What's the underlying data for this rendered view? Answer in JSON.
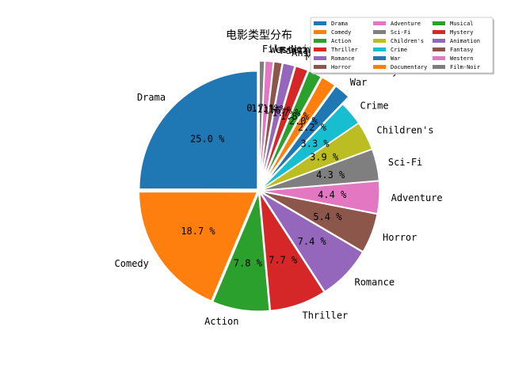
{
  "chart_data": {
    "type": "pie",
    "title": "电影类型分布",
    "legend_position": "top-right",
    "slices": [
      {
        "label": "Drama",
        "value": 25.0,
        "color": "#1f77b4"
      },
      {
        "label": "Comedy",
        "value": 18.7,
        "color": "#ff7f0e"
      },
      {
        "label": "Action",
        "value": 7.8,
        "color": "#2ca02c"
      },
      {
        "label": "Thriller",
        "value": 7.7,
        "color": "#d62728"
      },
      {
        "label": "Romance",
        "value": 7.4,
        "color": "#9467bd"
      },
      {
        "label": "Horror",
        "value": 5.4,
        "color": "#8c564b"
      },
      {
        "label": "Adventure",
        "value": 4.4,
        "color": "#e377c2"
      },
      {
        "label": "Sci-Fi",
        "value": 4.3,
        "color": "#7f7f7f"
      },
      {
        "label": "Children's",
        "value": 3.9,
        "color": "#bcbd22"
      },
      {
        "label": "Crime",
        "value": 3.3,
        "color": "#17becf"
      },
      {
        "label": "War",
        "value": 2.2,
        "color": "#1f77b4"
      },
      {
        "label": "Documentary",
        "value": 2.0,
        "color": "#ff7f0e"
      },
      {
        "label": "Musical",
        "value": 1.8,
        "color": "#2ca02c"
      },
      {
        "label": "Mystery",
        "value": 1.7,
        "color": "#d62728"
      },
      {
        "label": "Animation",
        "value": 1.6,
        "color": "#9467bd"
      },
      {
        "label": "Fantasy",
        "value": 1.1,
        "color": "#8c564b"
      },
      {
        "label": "Western",
        "value": 1.1,
        "color": "#e377c2"
      },
      {
        "label": "Film-Noir",
        "value": 0.7,
        "color": "#7f7f7f"
      }
    ],
    "value_format": "%.1f %",
    "legend_columns": 3
  }
}
